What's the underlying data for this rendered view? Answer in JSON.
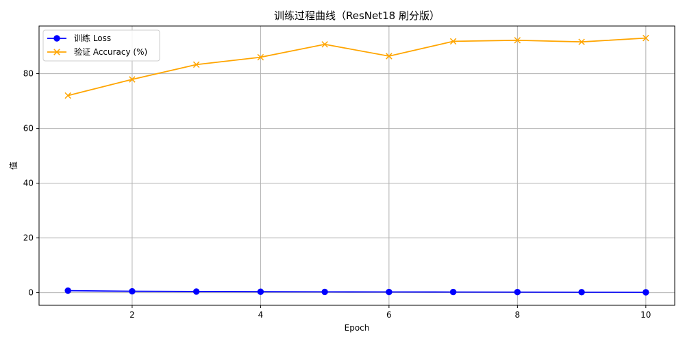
{
  "chart_data": {
    "type": "line",
    "title": "训练过程曲线（ResNet18 刷分版）",
    "xlabel": "Epoch",
    "ylabel": "值",
    "x": [
      1,
      2,
      3,
      4,
      5,
      6,
      7,
      8,
      9,
      10
    ],
    "xlim": [
      0.55,
      10.45
    ],
    "ylim": [
      -4.6,
      97.4
    ],
    "xticks": [
      2,
      4,
      6,
      8,
      10
    ],
    "yticks": [
      0,
      20,
      40,
      60,
      80
    ],
    "grid": true,
    "legend_position": "top-left",
    "series": [
      {
        "name": "训练 Loss",
        "color": "#0000ff",
        "marker": "circle",
        "values": [
          0.75,
          0.52,
          0.42,
          0.35,
          0.3,
          0.27,
          0.25,
          0.22,
          0.19,
          0.15
        ]
      },
      {
        "name": "验证 Accuracy (%)",
        "color": "#ffa500",
        "marker": "x",
        "values": [
          72.0,
          77.9,
          83.3,
          86.0,
          90.7,
          86.4,
          91.8,
          92.2,
          91.6,
          93.0
        ]
      }
    ]
  }
}
